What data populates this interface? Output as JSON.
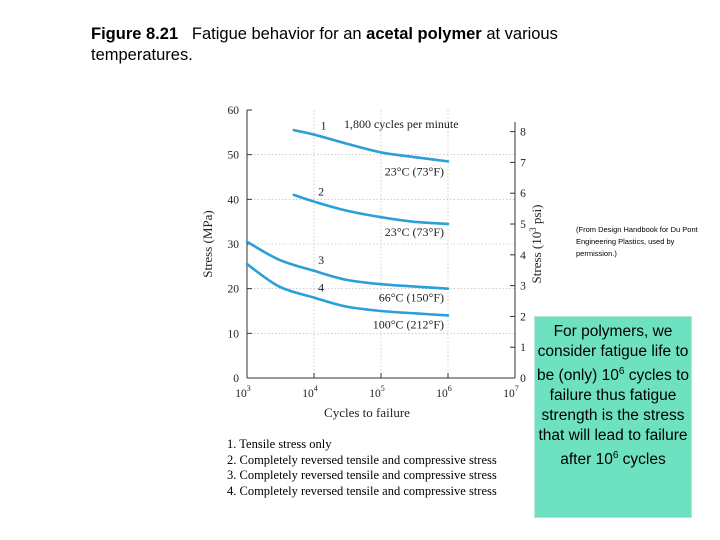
{
  "figure": {
    "label": "Figure 8.21",
    "text_a": "Fatigue behavior for an ",
    "text_bold": "acetal polymer",
    "text_b": " at various temperatures."
  },
  "credit": "(From Design Handbook for Du Pont Engineering Plastics, used by permission.)",
  "notes": [
    "1. Tensile stress only",
    "2. Completely reversed tensile and compressive stress",
    "3. Completely reversed tensile and compressive stress",
    "4. Completely reversed tensile and compressive stress"
  ],
  "callout": {
    "line1": "For polymers, we consider fatigue life to be (only) 10",
    "exp1": "6",
    "line2": " cycles to failure thus fatigue strength is the stress that will lead to failure after 10",
    "exp2": "6",
    "line3": " cycles"
  },
  "chart_data": {
    "type": "line",
    "x_scale": "log",
    "xlim": [
      1000,
      10000000
    ],
    "xticks": [
      1000,
      10000,
      100000,
      1000000,
      10000000
    ],
    "xtick_labels": [
      [
        "10",
        "3"
      ],
      [
        "10",
        "4"
      ],
      [
        "10",
        "5"
      ],
      [
        "10",
        "6"
      ],
      [
        "10",
        "7"
      ]
    ],
    "xlabel": "Cycles to failure",
    "ylabel_left": "Stress (MPa)",
    "ylim_left": [
      0,
      60
    ],
    "yticks_left": [
      0,
      10,
      20,
      30,
      40,
      50,
      60
    ],
    "ylabel_right_main": "Stress (10",
    "ylabel_right_exp": "3",
    "ylabel_right_tail": " psi)",
    "yticks_right": [
      0,
      1,
      2,
      3,
      4,
      5,
      6,
      7,
      8
    ],
    "grid": true,
    "series": [
      {
        "name": "1",
        "label": "1,800 cycles per minute",
        "temp_label": "23°C (73°F)",
        "x": [
          5000,
          10000,
          30000,
          100000,
          300000,
          1000000
        ],
        "y": [
          55.5,
          54.5,
          52.5,
          50.5,
          49.5,
          48.5
        ]
      },
      {
        "name": "2",
        "temp_label": "23°C (73°F)",
        "x": [
          5000,
          10000,
          30000,
          100000,
          300000,
          1000000
        ],
        "y": [
          41,
          39.5,
          37.5,
          36,
          35,
          34.5
        ]
      },
      {
        "name": "3",
        "temp_label": "66°C (150°F)",
        "x": [
          1000,
          3000,
          10000,
          30000,
          100000,
          300000,
          1000000
        ],
        "y": [
          30.5,
          26.5,
          24,
          22,
          21,
          20.5,
          20
        ]
      },
      {
        "name": "4",
        "temp_label": "100°C (212°F)",
        "x": [
          1000,
          3000,
          10000,
          30000,
          100000,
          300000,
          1000000
        ],
        "y": [
          25.5,
          20.5,
          18,
          16,
          15,
          14.5,
          14
        ]
      }
    ]
  }
}
